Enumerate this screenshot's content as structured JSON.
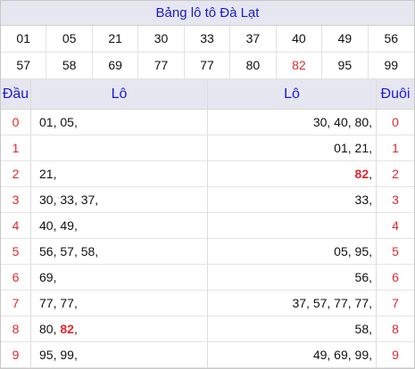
{
  "title": "Bảng lô tô Đà Lạt",
  "numbers": [
    "01",
    "05",
    "21",
    "30",
    "33",
    "37",
    "40",
    "49",
    "56",
    "57",
    "58",
    "69",
    "77",
    "77",
    "80",
    "82",
    "95",
    "99"
  ],
  "highlight": "82",
  "headers": {
    "dau": "Đầu",
    "lo_left": "Lô",
    "lo_right": "Lô",
    "duoi": "Đuôi"
  },
  "rows": [
    {
      "dau": "0",
      "lo_left": "01, 05,",
      "lo_right": "30, 40, 80,",
      "duoi": "0"
    },
    {
      "dau": "1",
      "lo_left": "",
      "lo_right": "01, 21,",
      "duoi": "1"
    },
    {
      "dau": "2",
      "lo_left": "21,",
      "lo_right": "82,",
      "duoi": "2"
    },
    {
      "dau": "3",
      "lo_left": "30, 33, 37,",
      "lo_right": "33,",
      "duoi": "3"
    },
    {
      "dau": "4",
      "lo_left": "40, 49,",
      "lo_right": "",
      "duoi": "4"
    },
    {
      "dau": "5",
      "lo_left": "56, 57, 58,",
      "lo_right": "05, 95,",
      "duoi": "5"
    },
    {
      "dau": "6",
      "lo_left": "69,",
      "lo_right": "56,",
      "duoi": "6"
    },
    {
      "dau": "7",
      "lo_left": "77, 77,",
      "lo_right": "37, 57, 77, 77,",
      "duoi": "7"
    },
    {
      "dau": "8",
      "lo_left": "80, 82,",
      "lo_right": "58,",
      "duoi": "8"
    },
    {
      "dau": "9",
      "lo_left": "95, 99,",
      "lo_right": "49, 69, 99,",
      "duoi": "9"
    }
  ],
  "colors": {
    "accent": "#1a1ad0",
    "highlight": "#e0282e",
    "header_bg": "#e6e6f0"
  }
}
